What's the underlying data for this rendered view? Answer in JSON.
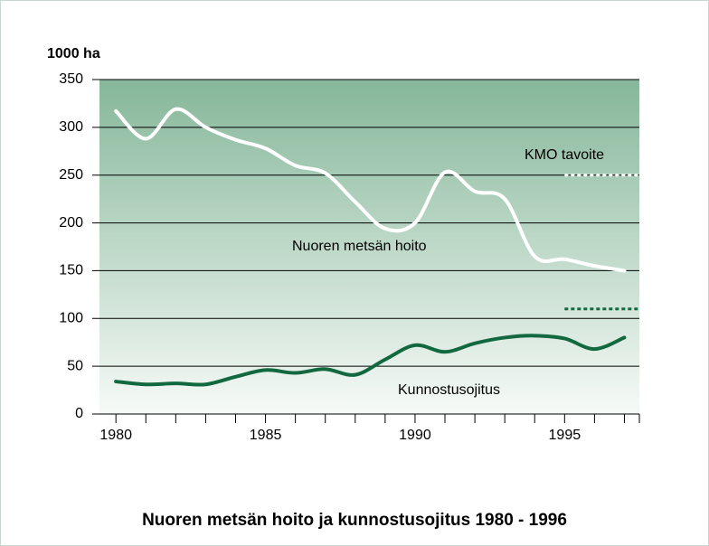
{
  "chart_data": {
    "type": "line",
    "title": "Nuoren metsän hoito ja kunnostusojitus 1980 - 1996",
    "y_label": "1000 ha",
    "x": [
      1980,
      1981,
      1982,
      1983,
      1984,
      1985,
      1986,
      1987,
      1988,
      1989,
      1990,
      1991,
      1992,
      1993,
      1994,
      1995,
      1996,
      1997
    ],
    "series": [
      {
        "name": "Nuoren metsän hoito",
        "color": "#ffffff",
        "values": [
          317,
          288,
          319,
          300,
          287,
          278,
          260,
          252,
          222,
          194,
          200,
          253,
          233,
          225,
          165,
          162,
          155,
          150
        ]
      },
      {
        "name": "Kunnostusojitus",
        "color": "#12683f",
        "values": [
          34,
          31,
          32,
          31,
          39,
          46,
          43,
          47,
          41,
          57,
          72,
          65,
          74,
          80,
          82,
          79,
          68,
          80
        ]
      }
    ],
    "targets": [
      {
        "label": "KMO tavoite",
        "value": 250,
        "color": "#ffffff",
        "from": 1995
      },
      {
        "value": 110,
        "color": "#12683f",
        "from": 1995
      }
    ],
    "xlim": [
      1979.45,
      1997.5
    ],
    "xticks": [
      1980,
      1985,
      1990,
      1995
    ],
    "xminor_ticks": [
      1981,
      1982,
      1983,
      1984,
      1986,
      1987,
      1988,
      1989,
      1991,
      1992,
      1993,
      1994,
      1996,
      1997
    ],
    "ylim": [
      0,
      350
    ],
    "yticks": [
      0,
      50,
      100,
      150,
      200,
      250,
      300,
      350
    ],
    "grid": true
  }
}
